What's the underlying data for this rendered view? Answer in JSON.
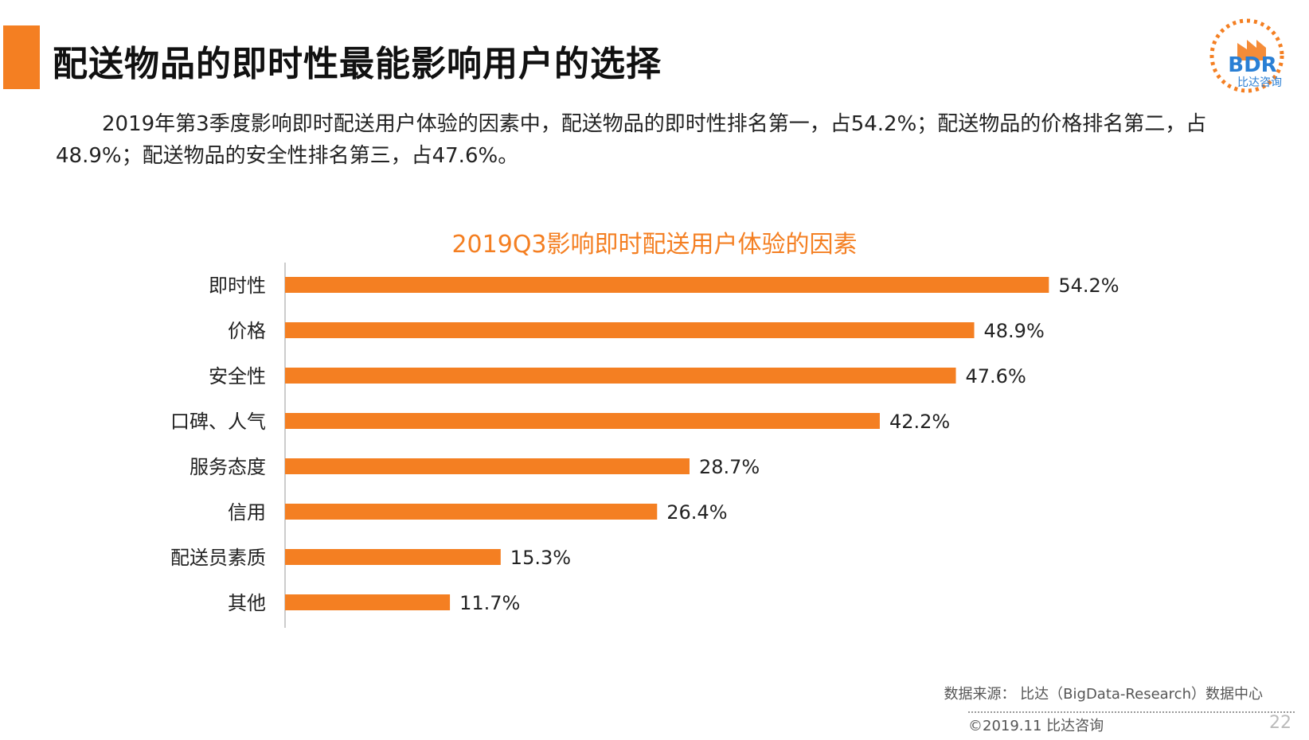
{
  "slide": {
    "title": "配送物品的即时性最能影响用户的选择",
    "intro": "2019年第3季度影响即时配送用户体验的因素中，配送物品的即时性排名第一，占54.2%；配送物品的价格排名第二，占48.9%；配送物品的安全性排名第三，占47.6%。",
    "logo": {
      "text": "BDR",
      "subtext": "比达咨询"
    },
    "source": "数据来源： 比达（BigData-Research）数据中心",
    "copyright": "©2019.11  比达咨询",
    "page_number": "22"
  },
  "colors": {
    "accent": "#f47f22",
    "logo_blue": "#2a7fd4"
  },
  "chart_data": {
    "type": "bar",
    "orientation": "horizontal",
    "title": "2019Q3影响即时配送用户体验的因素",
    "categories": [
      "即时性",
      "价格",
      "安全性",
      "口碑、人气",
      "服务态度",
      "信用",
      "配送员素质",
      "其他"
    ],
    "values": [
      54.2,
      48.9,
      47.6,
      42.2,
      28.7,
      26.4,
      15.3,
      11.7
    ],
    "value_labels": [
      "54.2%",
      "48.9%",
      "47.6%",
      "42.2%",
      "28.7%",
      "26.4%",
      "15.3%",
      "11.7%"
    ],
    "unit": "%",
    "bar_color": "#f47f22",
    "grid": false
  }
}
